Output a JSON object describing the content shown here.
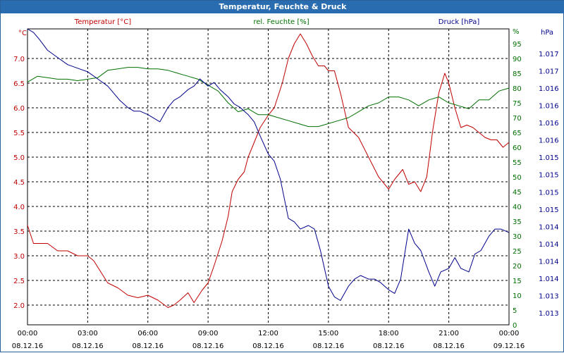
{
  "window": {
    "title": "Temperatur, Feuchte & Druck"
  },
  "chart_data": {
    "type": "line",
    "title": "Temperatur, Feuchte & Druck",
    "grid": true,
    "x_ticks": [
      {
        "time": "00:00",
        "date": "08.12.16"
      },
      {
        "time": "03:00",
        "date": "08.12.16"
      },
      {
        "time": "06:00",
        "date": "08.12.16"
      },
      {
        "time": "09:00",
        "date": "08.12.16"
      },
      {
        "time": "12:00",
        "date": "08.12.16"
      },
      {
        "time": "15:00",
        "date": "08.12.16"
      },
      {
        "time": "18:00",
        "date": "08.12.16"
      },
      {
        "time": "21:00",
        "date": "08.12.16"
      },
      {
        "time": "00:00",
        "date": "09.12.16"
      }
    ],
    "axes": {
      "temperature": {
        "label": "Temperatur [°C]",
        "unit": "°C",
        "range": [
          1.6,
          7.6
        ],
        "ticks": [
          "7.0",
          "6.5",
          "6.0",
          "5.5",
          "5.0",
          "4.5",
          "4.0",
          "3.5",
          "3.0",
          "2.5",
          "2.0"
        ]
      },
      "humidity": {
        "label": "rel. Feuchte [%]",
        "unit": "%",
        "range": [
          0,
          100
        ],
        "ticks": [
          "95",
          "90",
          "85",
          "80",
          "75",
          "70",
          "65",
          "60",
          "55",
          "50",
          "45",
          "40",
          "35",
          "30",
          "25",
          "20",
          "15",
          "10",
          "5",
          "0"
        ]
      },
      "pressure": {
        "label": "Druck [hPa]",
        "unit": "hPa",
        "range": [
          1012.96,
          1017.1
        ],
        "ticks": [
          "1.017",
          "1.017",
          "1.016",
          "1.016",
          "1.016",
          "1.016",
          "1.015",
          "1.015",
          "1.015",
          "1.015",
          "1.014",
          "1.014",
          "1.014",
          "1.014",
          "1.013",
          "1.013"
        ]
      }
    },
    "colors": {
      "temperature": "#c00000",
      "humidity": "#007000",
      "pressure": "#00008b",
      "title_bg": "#2a6cb0",
      "grid": "#000000"
    },
    "series": [
      {
        "name": "Temperatur [°C]",
        "axis": "temperature",
        "color": "#c00000",
        "x": [
          0,
          0.3,
          0.6,
          1,
          1.5,
          2,
          2.5,
          3,
          3.3,
          4,
          4.5,
          5,
          5.5,
          6,
          6.5,
          7,
          7.3,
          7.6,
          8,
          8.3,
          8.7,
          9,
          9.3,
          9.7,
          10,
          10.2,
          10.5,
          10.8,
          11,
          11.3,
          11.6,
          12,
          12.3,
          12.7,
          13,
          13.3,
          13.6,
          13.9,
          14.2,
          14.5,
          14.8,
          15,
          15.3,
          15.6,
          16,
          16.5,
          17,
          17.5,
          18,
          18.3,
          18.7,
          19,
          19.3,
          19.6,
          19.9,
          20.2,
          20.5,
          20.8,
          21,
          21.3,
          21.6,
          21.9,
          22.2,
          22.5,
          22.8,
          23.1,
          23.4,
          23.7,
          24
        ],
        "values": [
          3.62,
          3.25,
          3.25,
          3.25,
          3.1,
          3.1,
          3.0,
          3.0,
          2.9,
          2.45,
          2.35,
          2.2,
          2.15,
          2.2,
          2.1,
          1.95,
          2.0,
          2.1,
          2.25,
          2.05,
          2.3,
          2.45,
          2.8,
          3.3,
          3.8,
          4.3,
          4.55,
          4.7,
          5.0,
          5.3,
          5.6,
          5.85,
          6.0,
          6.5,
          7.0,
          7.3,
          7.5,
          7.3,
          7.05,
          6.85,
          6.85,
          6.75,
          6.75,
          6.3,
          5.6,
          5.4,
          5.0,
          4.6,
          4.35,
          4.55,
          4.75,
          4.45,
          4.5,
          4.3,
          4.6,
          5.55,
          6.3,
          6.7,
          6.5,
          6.0,
          5.6,
          5.65,
          5.6,
          5.5,
          5.4,
          5.35,
          5.35,
          5.2,
          5.3
        ]
      },
      {
        "name": "rel. Feuchte [%]",
        "axis": "humidity",
        "color": "#007000",
        "x": [
          0,
          0.5,
          1,
          1.5,
          2,
          2.5,
          3,
          3.5,
          4,
          4.5,
          5,
          5.5,
          6,
          6.5,
          7,
          7.5,
          8,
          8.5,
          9,
          9.5,
          10,
          10.5,
          11,
          11.5,
          12,
          12.5,
          13,
          13.5,
          14,
          14.5,
          15,
          15.5,
          16,
          16.5,
          17,
          17.5,
          18,
          18.5,
          19,
          19.5,
          20,
          20.5,
          21,
          21.5,
          22,
          22.5,
          23,
          23.5,
          24
        ],
        "values": [
          82,
          84,
          83.5,
          83,
          83,
          82.5,
          83,
          83.5,
          86,
          86.5,
          87,
          87,
          86.5,
          86.5,
          86,
          85,
          84,
          83,
          81,
          79,
          75,
          72,
          73,
          71,
          71,
          70,
          69,
          68,
          67,
          67,
          68,
          69,
          70,
          72,
          74,
          75,
          77,
          77,
          76,
          74,
          76,
          77,
          75,
          74,
          73,
          76,
          76,
          79,
          80
        ]
      },
      {
        "name": "Druck [hPa]",
        "axis": "pressure",
        "color": "#00008b",
        "x": [
          0,
          0.3,
          0.6,
          1,
          1.5,
          2,
          2.5,
          3,
          3.5,
          4,
          4.3,
          4.6,
          5,
          5.3,
          5.6,
          6,
          6.3,
          6.6,
          7,
          7.3,
          7.6,
          8,
          8.3,
          8.6,
          9,
          9.3,
          9.6,
          10,
          10.3,
          10.6,
          11,
          11.3,
          11.6,
          12,
          12.3,
          12.6,
          13,
          13.3,
          13.6,
          14,
          14.3,
          14.6,
          15,
          15.3,
          15.6,
          16,
          16.3,
          16.6,
          17,
          17.3,
          17.6,
          18,
          18.3,
          18.6,
          19,
          19.3,
          19.6,
          20,
          20.3,
          20.6,
          21,
          21.3,
          21.6,
          22,
          22.3,
          22.6,
          23,
          23.3,
          23.6,
          24
        ],
        "values": [
          1017.1,
          1017.05,
          1016.95,
          1016.8,
          1016.7,
          1016.6,
          1016.55,
          1016.5,
          1016.4,
          1016.3,
          1016.2,
          1016.1,
          1016.0,
          1015.95,
          1015.95,
          1015.9,
          1015.85,
          1015.8,
          1016.0,
          1016.1,
          1016.15,
          1016.25,
          1016.3,
          1016.4,
          1016.3,
          1016.35,
          1016.25,
          1016.15,
          1016.05,
          1016.0,
          1015.9,
          1015.8,
          1015.6,
          1015.35,
          1015.25,
          1015.0,
          1014.45,
          1014.4,
          1014.3,
          1014.35,
          1014.3,
          1014.0,
          1013.5,
          1013.35,
          1013.3,
          1013.5,
          1013.6,
          1013.65,
          1013.6,
          1013.6,
          1013.55,
          1013.45,
          1013.4,
          1013.6,
          1014.3,
          1014.1,
          1014.0,
          1013.7,
          1013.5,
          1013.7,
          1013.75,
          1013.9,
          1013.75,
          1013.7,
          1013.95,
          1014.0,
          1014.2,
          1014.3,
          1014.3,
          1014.25
        ]
      }
    ]
  }
}
